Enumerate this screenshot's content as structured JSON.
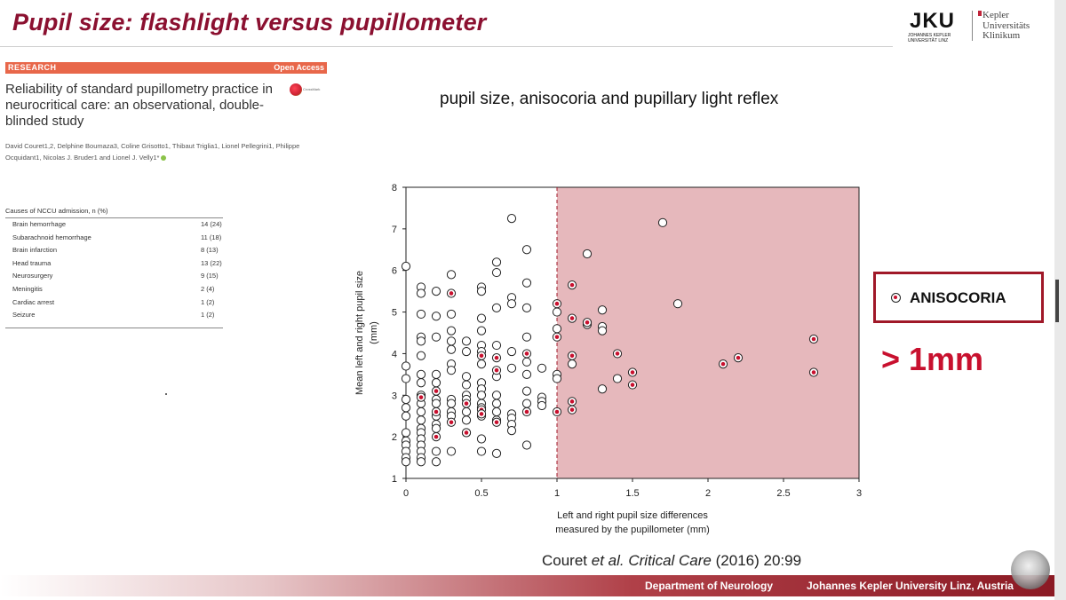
{
  "slide": {
    "title": "Pupil size: flashlight versus pupillometer",
    "subtitle": "pupil size, anisocoria and pupillary light reflex",
    "citation": {
      "author": "Couret",
      "etal": "et al.",
      "journal": "Critical Care",
      "ref": "(2016) 20:99"
    }
  },
  "logo": {
    "jku": "JKU",
    "jku_sub": "JOHANNES KEPLER UNIVERSITÄT LINZ",
    "kuk_line1": "Kepler",
    "kuk_line2": "Universitäts",
    "kuk_line3": "Klinikum"
  },
  "paper": {
    "section_label": "RESEARCH",
    "access_label": "Open Access",
    "title": "Reliability of standard pupillometry practice in neurocritical care: an observational, double-blinded study",
    "crossmark": "CrossMark",
    "authors": "David Couret1,2, Delphine Boumaza3, Coline Grisotto1, Thibaut Triglia1, Lionel Pellegrini1, Philippe Ocquidant1, Nicolas J. Bruder1 and Lionel J. Velly1*"
  },
  "causes_table": {
    "header": "Causes of NCCU admission, n (%)",
    "rows": [
      {
        "label": "Brain hemorrhage",
        "value": "14 (24)"
      },
      {
        "label": "Subarachnoid hemorrhage",
        "value": "11 (18)"
      },
      {
        "label": "Brain infarction",
        "value": "8 (13)"
      },
      {
        "label": "Head trauma",
        "value": "13 (22)"
      },
      {
        "label": "Neurosurgery",
        "value": "9 (15)"
      },
      {
        "label": "Meningitis",
        "value": "2 (4)"
      },
      {
        "label": "Cardiac arrest",
        "value": "1 (2)"
      },
      {
        "label": "Seizure",
        "value": "1 (2)"
      }
    ]
  },
  "legend": {
    "label": "ANISOCORIA",
    "threshold_text": "> 1mm"
  },
  "footer": {
    "department": "Department of Neurology",
    "university": "Johannes Kepler University Linz, Austria"
  },
  "colors": {
    "title": "#8b1030",
    "accent_red": "#c8102e",
    "shaded_region": "#e6b8bc",
    "research_bar": "#e8674a"
  },
  "chart_data": {
    "type": "scatter",
    "xlabel_line1": "Left and right pupil size differences",
    "xlabel_line2": "measured by the pupillometer  (mm)",
    "ylabel_line1": "Mean left and right pupil size",
    "ylabel_line2": "(mm)",
    "xlim": [
      0,
      3
    ],
    "ylim": [
      1,
      8
    ],
    "xticks": [
      "0",
      "0.5",
      "1",
      "1.5",
      "2",
      "2.5",
      "3"
    ],
    "yticks": [
      "1",
      "2",
      "3",
      "4",
      "5",
      "6",
      "7",
      "8"
    ],
    "threshold_x": 1,
    "shaded_region": [
      1,
      3
    ],
    "points_open": [
      [
        0,
        6.1
      ],
      [
        0,
        3.7
      ],
      [
        0,
        3.4
      ],
      [
        0,
        2.9
      ],
      [
        0,
        2.7
      ],
      [
        0,
        2.5
      ],
      [
        0,
        2.1
      ],
      [
        0,
        1.9
      ],
      [
        0,
        1.8
      ],
      [
        0,
        1.65
      ],
      [
        0,
        1.5
      ],
      [
        0,
        1.4
      ],
      [
        0.1,
        5.6
      ],
      [
        0.1,
        5.45
      ],
      [
        0.1,
        4.95
      ],
      [
        0.1,
        4.4
      ],
      [
        0.1,
        4.3
      ],
      [
        0.1,
        3.95
      ],
      [
        0.1,
        3.5
      ],
      [
        0.1,
        3.3
      ],
      [
        0.1,
        3.0
      ],
      [
        0.1,
        2.8
      ],
      [
        0.1,
        2.6
      ],
      [
        0.1,
        2.4
      ],
      [
        0.1,
        2.2
      ],
      [
        0.1,
        2.1
      ],
      [
        0.1,
        1.95
      ],
      [
        0.1,
        1.8
      ],
      [
        0.1,
        1.65
      ],
      [
        0.1,
        1.5
      ],
      [
        0.1,
        1.4
      ],
      [
        0.2,
        5.5
      ],
      [
        0.2,
        4.9
      ],
      [
        0.2,
        4.4
      ],
      [
        0.2,
        3.5
      ],
      [
        0.2,
        3.3
      ],
      [
        0.2,
        2.9
      ],
      [
        0.2,
        2.8
      ],
      [
        0.2,
        2.5
      ],
      [
        0.2,
        2.3
      ],
      [
        0.2,
        2.2
      ],
      [
        0.2,
        1.65
      ],
      [
        0.2,
        1.4
      ],
      [
        0.3,
        5.9
      ],
      [
        0.3,
        4.95
      ],
      [
        0.3,
        4.55
      ],
      [
        0.3,
        4.3
      ],
      [
        0.3,
        4.1
      ],
      [
        0.3,
        3.75
      ],
      [
        0.3,
        3.6
      ],
      [
        0.3,
        2.9
      ],
      [
        0.3,
        2.8
      ],
      [
        0.3,
        2.6
      ],
      [
        0.3,
        2.5
      ],
      [
        0.3,
        1.65
      ],
      [
        0.4,
        4.3
      ],
      [
        0.4,
        4.05
      ],
      [
        0.4,
        3.45
      ],
      [
        0.4,
        3.25
      ],
      [
        0.4,
        3.0
      ],
      [
        0.4,
        2.9
      ],
      [
        0.4,
        2.6
      ],
      [
        0.4,
        2.4
      ],
      [
        0.4,
        2.1
      ],
      [
        0.5,
        5.6
      ],
      [
        0.5,
        5.5
      ],
      [
        0.5,
        4.85
      ],
      [
        0.5,
        4.55
      ],
      [
        0.5,
        4.2
      ],
      [
        0.5,
        4.05
      ],
      [
        0.5,
        3.75
      ],
      [
        0.5,
        3.3
      ],
      [
        0.5,
        3.15
      ],
      [
        0.5,
        3.0
      ],
      [
        0.5,
        2.8
      ],
      [
        0.5,
        2.7
      ],
      [
        0.5,
        2.5
      ],
      [
        0.5,
        1.95
      ],
      [
        0.5,
        1.65
      ],
      [
        0.6,
        6.2
      ],
      [
        0.6,
        5.95
      ],
      [
        0.6,
        5.1
      ],
      [
        0.6,
        4.2
      ],
      [
        0.6,
        3.45
      ],
      [
        0.6,
        3.0
      ],
      [
        0.6,
        2.8
      ],
      [
        0.6,
        2.6
      ],
      [
        0.6,
        2.4
      ],
      [
        0.6,
        1.6
      ],
      [
        0.7,
        7.25
      ],
      [
        0.7,
        5.35
      ],
      [
        0.7,
        5.2
      ],
      [
        0.7,
        4.05
      ],
      [
        0.7,
        3.65
      ],
      [
        0.7,
        2.55
      ],
      [
        0.7,
        2.45
      ],
      [
        0.7,
        2.3
      ],
      [
        0.7,
        2.15
      ],
      [
        0.8,
        6.5
      ],
      [
        0.8,
        5.7
      ],
      [
        0.8,
        5.1
      ],
      [
        0.8,
        4.4
      ],
      [
        0.8,
        3.8
      ],
      [
        0.8,
        3.5
      ],
      [
        0.8,
        3.1
      ],
      [
        0.8,
        2.8
      ],
      [
        0.8,
        1.8
      ],
      [
        0.9,
        3.65
      ],
      [
        0.9,
        2.95
      ],
      [
        0.9,
        2.85
      ],
      [
        0.9,
        2.75
      ],
      [
        1.0,
        5.0
      ],
      [
        1.0,
        4.6
      ],
      [
        1.0,
        3.5
      ],
      [
        1.0,
        3.4
      ],
      [
        1.1,
        3.75
      ],
      [
        1.2,
        6.4
      ],
      [
        1.2,
        4.7
      ],
      [
        1.3,
        5.05
      ],
      [
        1.3,
        4.65
      ],
      [
        1.3,
        4.55
      ],
      [
        1.3,
        3.15
      ],
      [
        1.4,
        3.4
      ],
      [
        1.7,
        7.15
      ],
      [
        1.8,
        5.2
      ]
    ],
    "points_anisocoria": [
      [
        0.1,
        2.95
      ],
      [
        0.2,
        3.1
      ],
      [
        0.2,
        2.6
      ],
      [
        0.2,
        2.0
      ],
      [
        0.3,
        5.45
      ],
      [
        0.3,
        2.35
      ],
      [
        0.4,
        2.1
      ],
      [
        0.4,
        2.8
      ],
      [
        0.5,
        3.95
      ],
      [
        0.5,
        2.65
      ],
      [
        0.5,
        2.55
      ],
      [
        0.6,
        3.9
      ],
      [
        0.6,
        3.6
      ],
      [
        0.6,
        2.35
      ],
      [
        0.8,
        4.0
      ],
      [
        0.8,
        2.6
      ],
      [
        1.0,
        5.2
      ],
      [
        1.0,
        4.4
      ],
      [
        1.0,
        2.6
      ],
      [
        1.1,
        5.65
      ],
      [
        1.1,
        4.85
      ],
      [
        1.1,
        3.95
      ],
      [
        1.1,
        2.85
      ],
      [
        1.1,
        2.65
      ],
      [
        1.2,
        4.75
      ],
      [
        1.4,
        4.0
      ],
      [
        1.5,
        3.55
      ],
      [
        1.5,
        3.25
      ],
      [
        2.1,
        3.75
      ],
      [
        2.2,
        3.9
      ],
      [
        2.7,
        4.35
      ],
      [
        2.7,
        3.55
      ]
    ]
  }
}
